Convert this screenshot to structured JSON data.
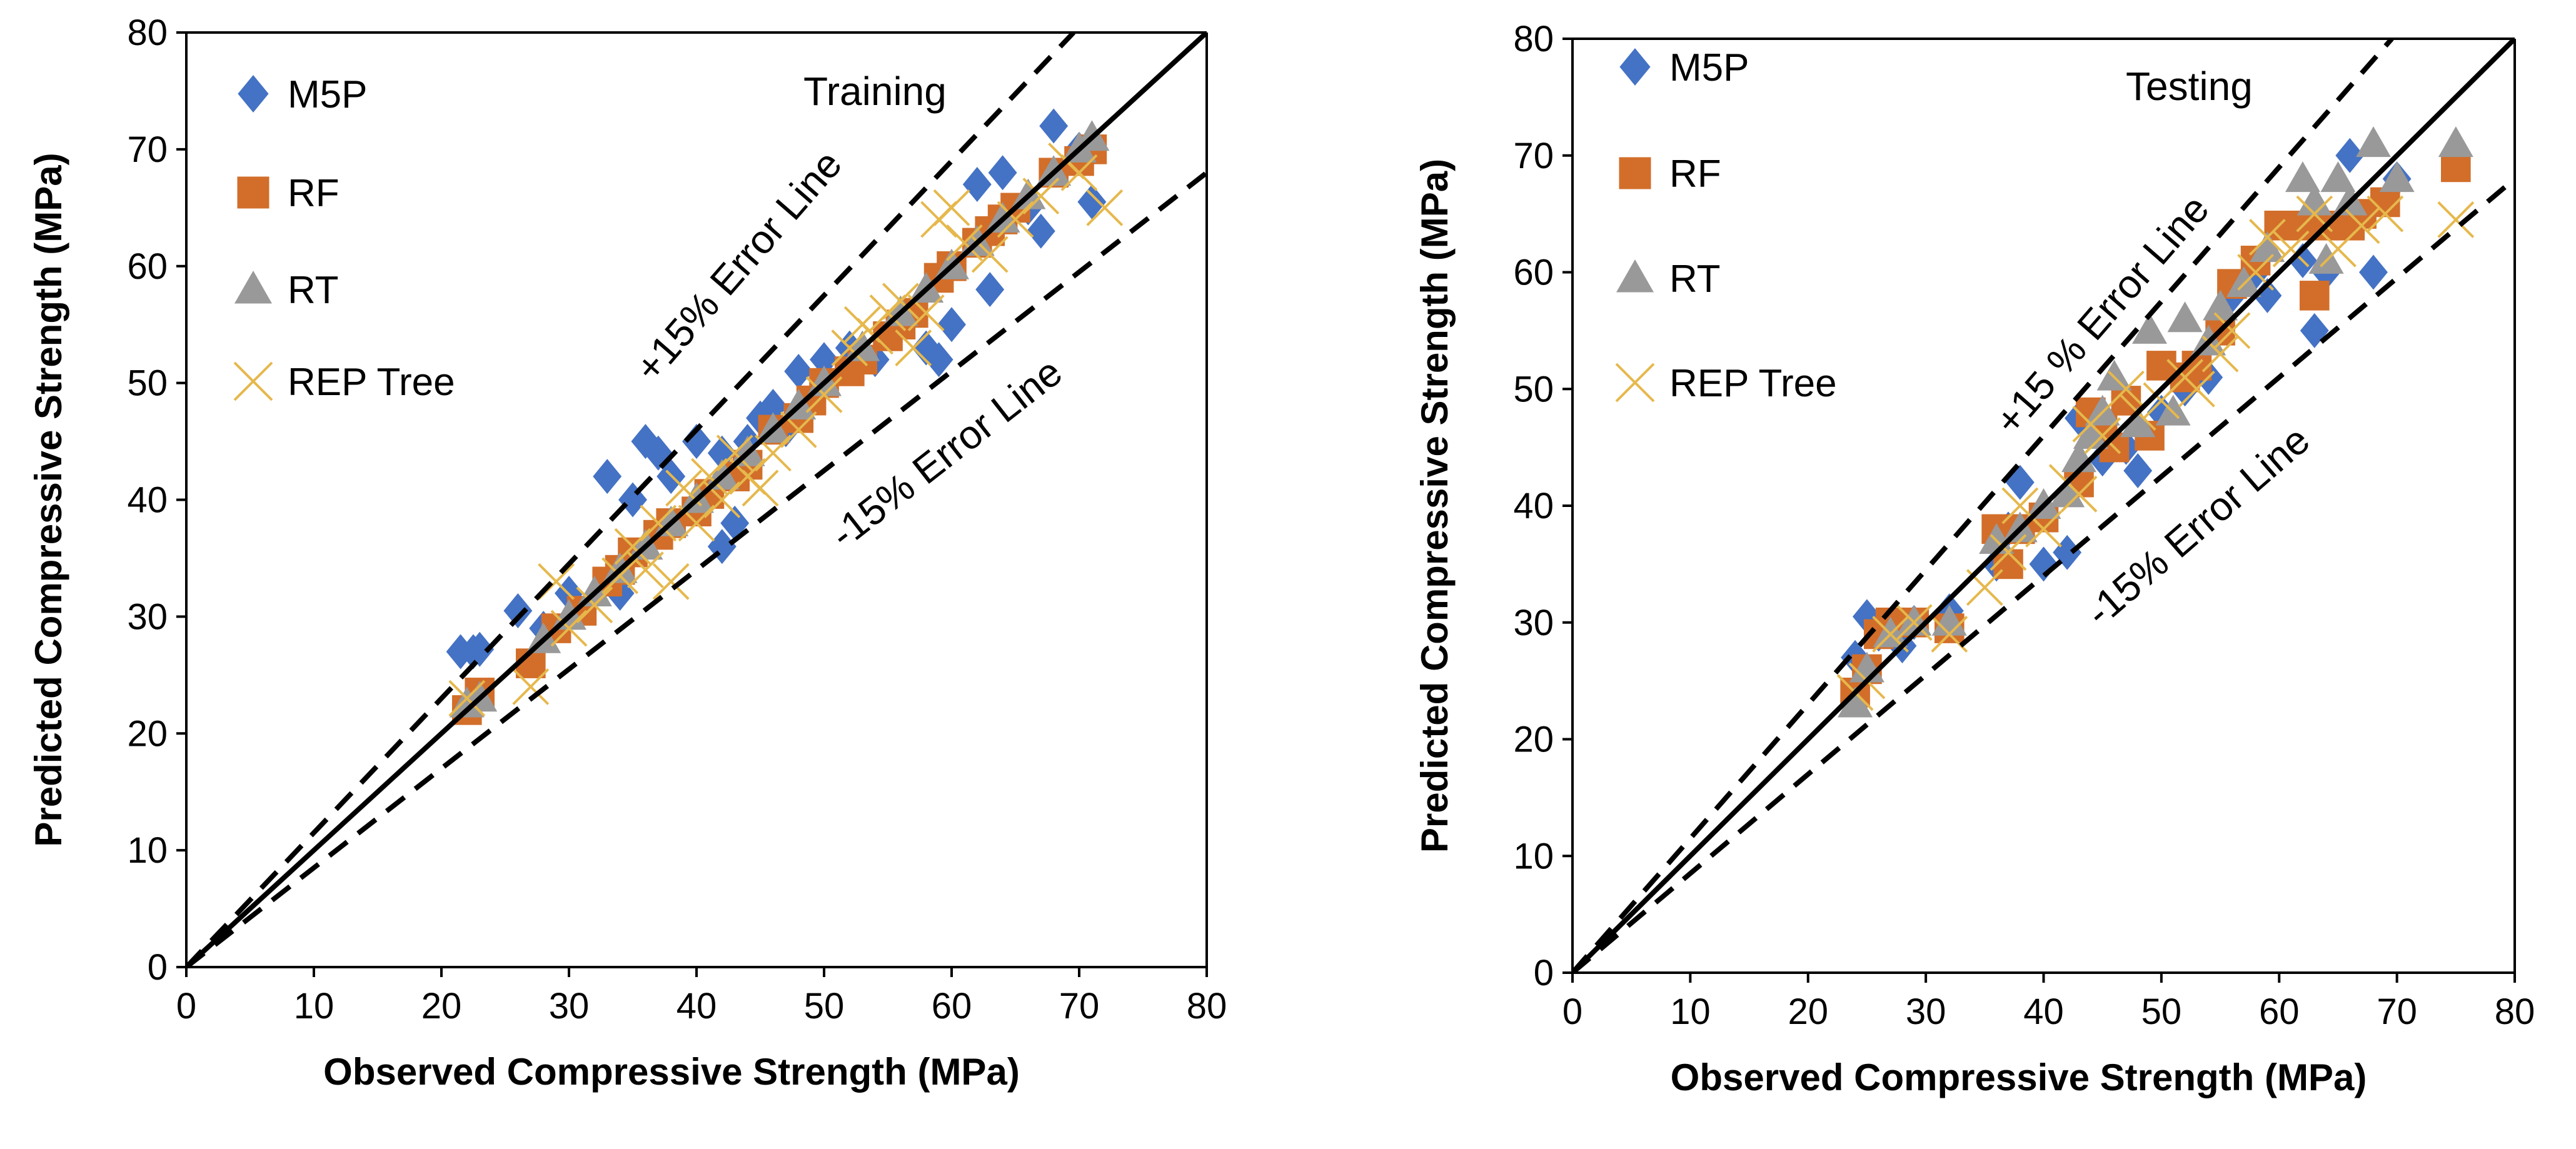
{
  "chart_data": [
    {
      "type": "scatter",
      "title": "Training",
      "xlabel": "Observed Compressive Strength (MPa)",
      "ylabel": "Predicted Compressive Strength (MPa)",
      "xlim": [
        0,
        80
      ],
      "ylim": [
        0,
        80
      ],
      "xticks": [
        0,
        10,
        20,
        30,
        40,
        50,
        60,
        70,
        80
      ],
      "yticks": [
        0,
        10,
        20,
        30,
        40,
        50,
        60,
        70,
        80
      ],
      "grid": false,
      "legend_position": "top-left",
      "reference_lines": {
        "equality": "solid",
        "plus_label": "+15% Error Line",
        "minus_label": "-15% Error Line",
        "plus_factor": 1.15,
        "minus_factor": 0.85
      },
      "series": [
        {
          "name": "M5P",
          "marker": "diamond",
          "color": "#4472C4",
          "points": [
            [
              21.5,
              27
            ],
            [
              22.5,
              27
            ],
            [
              23,
              27.2
            ],
            [
              26,
              30.5
            ],
            [
              28,
              29
            ],
            [
              30,
              32
            ],
            [
              33,
              42
            ],
            [
              35,
              40
            ],
            [
              34,
              32
            ],
            [
              36,
              45
            ],
            [
              37,
              44
            ],
            [
              38,
              42
            ],
            [
              40,
              45
            ],
            [
              42,
              44
            ],
            [
              44,
              45
            ],
            [
              42,
              36
            ],
            [
              43,
              38
            ],
            [
              45,
              47
            ],
            [
              46,
              48
            ],
            [
              47,
              46
            ],
            [
              48,
              51
            ],
            [
              50,
              52
            ],
            [
              52,
              53
            ],
            [
              54,
              52
            ],
            [
              56,
              55
            ],
            [
              58,
              53
            ],
            [
              59,
              52
            ],
            [
              60,
              55
            ],
            [
              62,
              67
            ],
            [
              63,
              58
            ],
            [
              64,
              68
            ],
            [
              66,
              65
            ],
            [
              67,
              63
            ],
            [
              68,
              72
            ],
            [
              70,
              70
            ],
            [
              71,
              65.5
            ]
          ]
        },
        {
          "name": "RF",
          "marker": "square",
          "color": "#D26E2A",
          "points": [
            [
              22,
              22
            ],
            [
              23,
              23.5
            ],
            [
              27,
              26
            ],
            [
              29,
              29
            ],
            [
              31,
              30.5
            ],
            [
              33,
              33
            ],
            [
              34,
              34
            ],
            [
              35,
              35.5
            ],
            [
              37,
              37
            ],
            [
              38,
              38
            ],
            [
              40,
              39
            ],
            [
              41,
              40.5
            ],
            [
              43,
              42
            ],
            [
              44,
              43
            ],
            [
              46,
              46
            ],
            [
              48,
              47
            ],
            [
              49,
              48.5
            ],
            [
              50,
              50
            ],
            [
              52,
              51
            ],
            [
              53,
              52
            ],
            [
              55,
              54
            ],
            [
              56,
              55
            ],
            [
              57,
              56
            ],
            [
              59,
              59
            ],
            [
              60,
              60
            ],
            [
              62,
              62
            ],
            [
              63,
              63
            ],
            [
              64,
              64
            ],
            [
              65,
              65
            ],
            [
              68,
              68
            ],
            [
              70,
              69
            ],
            [
              71,
              70
            ]
          ]
        },
        {
          "name": "RT",
          "marker": "triangle",
          "color": "#999999",
          "points": [
            [
              22,
              22.5
            ],
            [
              23,
              23
            ],
            [
              28,
              28
            ],
            [
              30,
              30
            ],
            [
              32,
              32
            ],
            [
              34,
              34
            ],
            [
              36,
              36
            ],
            [
              38,
              38
            ],
            [
              40,
              40
            ],
            [
              42,
              42
            ],
            [
              44,
              44
            ],
            [
              46,
              46
            ],
            [
              48,
              48
            ],
            [
              50,
              50
            ],
            [
              53,
              53
            ],
            [
              56,
              56
            ],
            [
              58,
              58
            ],
            [
              60,
              60
            ],
            [
              62,
              62
            ],
            [
              64,
              64
            ],
            [
              66,
              66
            ],
            [
              68,
              68
            ],
            [
              70,
              70
            ],
            [
              71,
              71
            ]
          ]
        },
        {
          "name": "REP Tree",
          "marker": "x",
          "color": "#E6B84C",
          "points": [
            [
              22,
              23
            ],
            [
              27,
              24
            ],
            [
              29,
              33
            ],
            [
              30,
              29
            ],
            [
              32,
              31
            ],
            [
              34,
              33.5
            ],
            [
              35,
              36
            ],
            [
              36,
              34
            ],
            [
              37,
              38
            ],
            [
              38,
              33
            ],
            [
              39,
              41
            ],
            [
              40,
              38
            ],
            [
              41,
              42
            ],
            [
              42,
              40
            ],
            [
              43,
              44
            ],
            [
              44,
              42
            ],
            [
              45,
              41
            ],
            [
              46,
              44
            ],
            [
              48,
              46
            ],
            [
              50,
              49
            ],
            [
              52,
              53
            ],
            [
              53,
              55
            ],
            [
              54,
              54
            ],
            [
              55,
              56
            ],
            [
              56,
              57
            ],
            [
              57,
              53
            ],
            [
              58,
              56
            ],
            [
              59,
              64
            ],
            [
              60,
              65
            ],
            [
              61,
              62
            ],
            [
              63,
              61
            ],
            [
              65,
              64
            ],
            [
              67,
              66
            ],
            [
              69,
              69
            ],
            [
              70,
              68
            ],
            [
              72,
              65
            ]
          ]
        }
      ]
    },
    {
      "type": "scatter",
      "title": "Testing",
      "xlabel": "Observed Compressive Strength (MPa)",
      "ylabel": "Predicted Compressive Strength (MPa)",
      "xlim": [
        0,
        80
      ],
      "ylim": [
        0,
        80
      ],
      "xticks": [
        0,
        10,
        20,
        30,
        40,
        50,
        60,
        70,
        80
      ],
      "yticks": [
        0,
        10,
        20,
        30,
        40,
        50,
        60,
        70,
        80
      ],
      "grid": false,
      "legend_position": "top-left",
      "reference_lines": {
        "equality": "solid",
        "plus_label": "+15 % Error Line",
        "minus_label": "-15% Error Line",
        "plus_factor": 1.15,
        "minus_factor": 0.85
      },
      "series": [
        {
          "name": "M5P",
          "marker": "diamond",
          "color": "#4472C4",
          "points": [
            [
              24,
              27
            ],
            [
              25,
              30.5
            ],
            [
              26,
              29
            ],
            [
              28,
              28
            ],
            [
              29,
              30
            ],
            [
              32,
              31
            ],
            [
              36,
              35
            ],
            [
              37,
              38
            ],
            [
              38,
              42
            ],
            [
              40,
              35
            ],
            [
              42,
              36
            ],
            [
              43,
              47.5
            ],
            [
              45,
              44
            ],
            [
              47,
              45
            ],
            [
              48,
              43
            ],
            [
              50,
              48
            ],
            [
              52,
              50
            ],
            [
              54,
              51
            ],
            [
              56,
              58
            ],
            [
              58,
              60
            ],
            [
              59,
              58
            ],
            [
              62,
              61
            ],
            [
              63,
              55
            ],
            [
              64,
              60
            ],
            [
              66,
              70
            ],
            [
              68,
              60
            ],
            [
              70,
              68
            ]
          ]
        },
        {
          "name": "RF",
          "marker": "square",
          "color": "#D26E2A",
          "points": [
            [
              24,
              24
            ],
            [
              25,
              26
            ],
            [
              26,
              29
            ],
            [
              27,
              30
            ],
            [
              29,
              30
            ],
            [
              32,
              29.5
            ],
            [
              36,
              38
            ],
            [
              37,
              35
            ],
            [
              38,
              38
            ],
            [
              40,
              39
            ],
            [
              43,
              42
            ],
            [
              44,
              48
            ],
            [
              45,
              47
            ],
            [
              46,
              45
            ],
            [
              47,
              49
            ],
            [
              49,
              46
            ],
            [
              50,
              52
            ],
            [
              52,
              51
            ],
            [
              53,
              52
            ],
            [
              55,
              55
            ],
            [
              56,
              59
            ],
            [
              58,
              61
            ],
            [
              60,
              64
            ],
            [
              62,
              64
            ],
            [
              63,
              58
            ],
            [
              64,
              64
            ],
            [
              66,
              64
            ],
            [
              67,
              65
            ],
            [
              69,
              66
            ],
            [
              75,
              69
            ]
          ]
        },
        {
          "name": "RT",
          "marker": "triangle",
          "color": "#999999",
          "points": [
            [
              24,
              23
            ],
            [
              25,
              26
            ],
            [
              27,
              29
            ],
            [
              29,
              30
            ],
            [
              32,
              30
            ],
            [
              36,
              37
            ],
            [
              38,
              38
            ],
            [
              40,
              40
            ],
            [
              42,
              41
            ],
            [
              43,
              44
            ],
            [
              44,
              46
            ],
            [
              45,
              48
            ],
            [
              46,
              51
            ],
            [
              48,
              47
            ],
            [
              49,
              55
            ],
            [
              51,
              48
            ],
            [
              52,
              56
            ],
            [
              54,
              54
            ],
            [
              55,
              57
            ],
            [
              57,
              59
            ],
            [
              59,
              62
            ],
            [
              62,
              68
            ],
            [
              63,
              66
            ],
            [
              64,
              61
            ],
            [
              65,
              68
            ],
            [
              66,
              66
            ],
            [
              68,
              71
            ],
            [
              70,
              68
            ],
            [
              75,
              71
            ]
          ]
        },
        {
          "name": "REP Tree",
          "marker": "x",
          "color": "#E6B84C",
          "points": [
            [
              24,
              24
            ],
            [
              25,
              25
            ],
            [
              27,
              29
            ],
            [
              29,
              30
            ],
            [
              32,
              29
            ],
            [
              35,
              33
            ],
            [
              37,
              36
            ],
            [
              38,
              40
            ],
            [
              40,
              38
            ],
            [
              42,
              42
            ],
            [
              43,
              41
            ],
            [
              44,
              47
            ],
            [
              45,
              46
            ],
            [
              47,
              50
            ],
            [
              48,
              48
            ],
            [
              50,
              49
            ],
            [
              52,
              51
            ],
            [
              53,
              50
            ],
            [
              55,
              53
            ],
            [
              56,
              55
            ],
            [
              58,
              60
            ],
            [
              59,
              63
            ],
            [
              61,
              62
            ],
            [
              63,
              65
            ],
            [
              65,
              62
            ],
            [
              67,
              64
            ],
            [
              69,
              65
            ],
            [
              75,
              64.5
            ]
          ]
        }
      ]
    }
  ]
}
